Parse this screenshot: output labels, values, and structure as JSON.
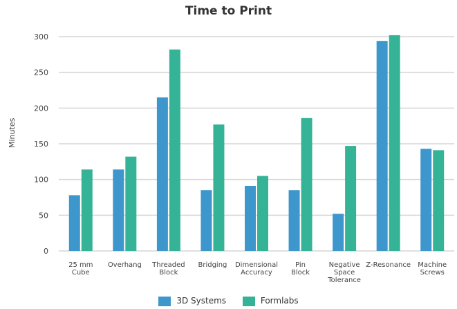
{
  "chart_data": {
    "type": "bar",
    "title": "Time to Print",
    "xlabel": "",
    "ylabel": "Minutes",
    "ylim": [
      0,
      300
    ],
    "yticks": [
      0,
      50,
      100,
      150,
      200,
      250,
      300
    ],
    "grid": true,
    "legend_position": "bottom",
    "categories": [
      [
        "25 mm",
        "Cube"
      ],
      [
        "Overhang"
      ],
      [
        "Threaded",
        "Block"
      ],
      [
        "Bridging"
      ],
      [
        "Dimensional",
        "Accuracy"
      ],
      [
        "Pin",
        "Block"
      ],
      [
        "Negative",
        "Space",
        "Tolerance"
      ],
      [
        "Z-Resonance"
      ],
      [
        "Machine",
        "Screws"
      ]
    ],
    "series": [
      {
        "name": "3D Systems",
        "color": "#3d97cc",
        "values": [
          78,
          114,
          215,
          85,
          91,
          85,
          52,
          294,
          143
        ]
      },
      {
        "name": "Formlabs",
        "color": "#35b397",
        "values": [
          114,
          132,
          282,
          177,
          105,
          186,
          147,
          302,
          141
        ]
      }
    ]
  }
}
